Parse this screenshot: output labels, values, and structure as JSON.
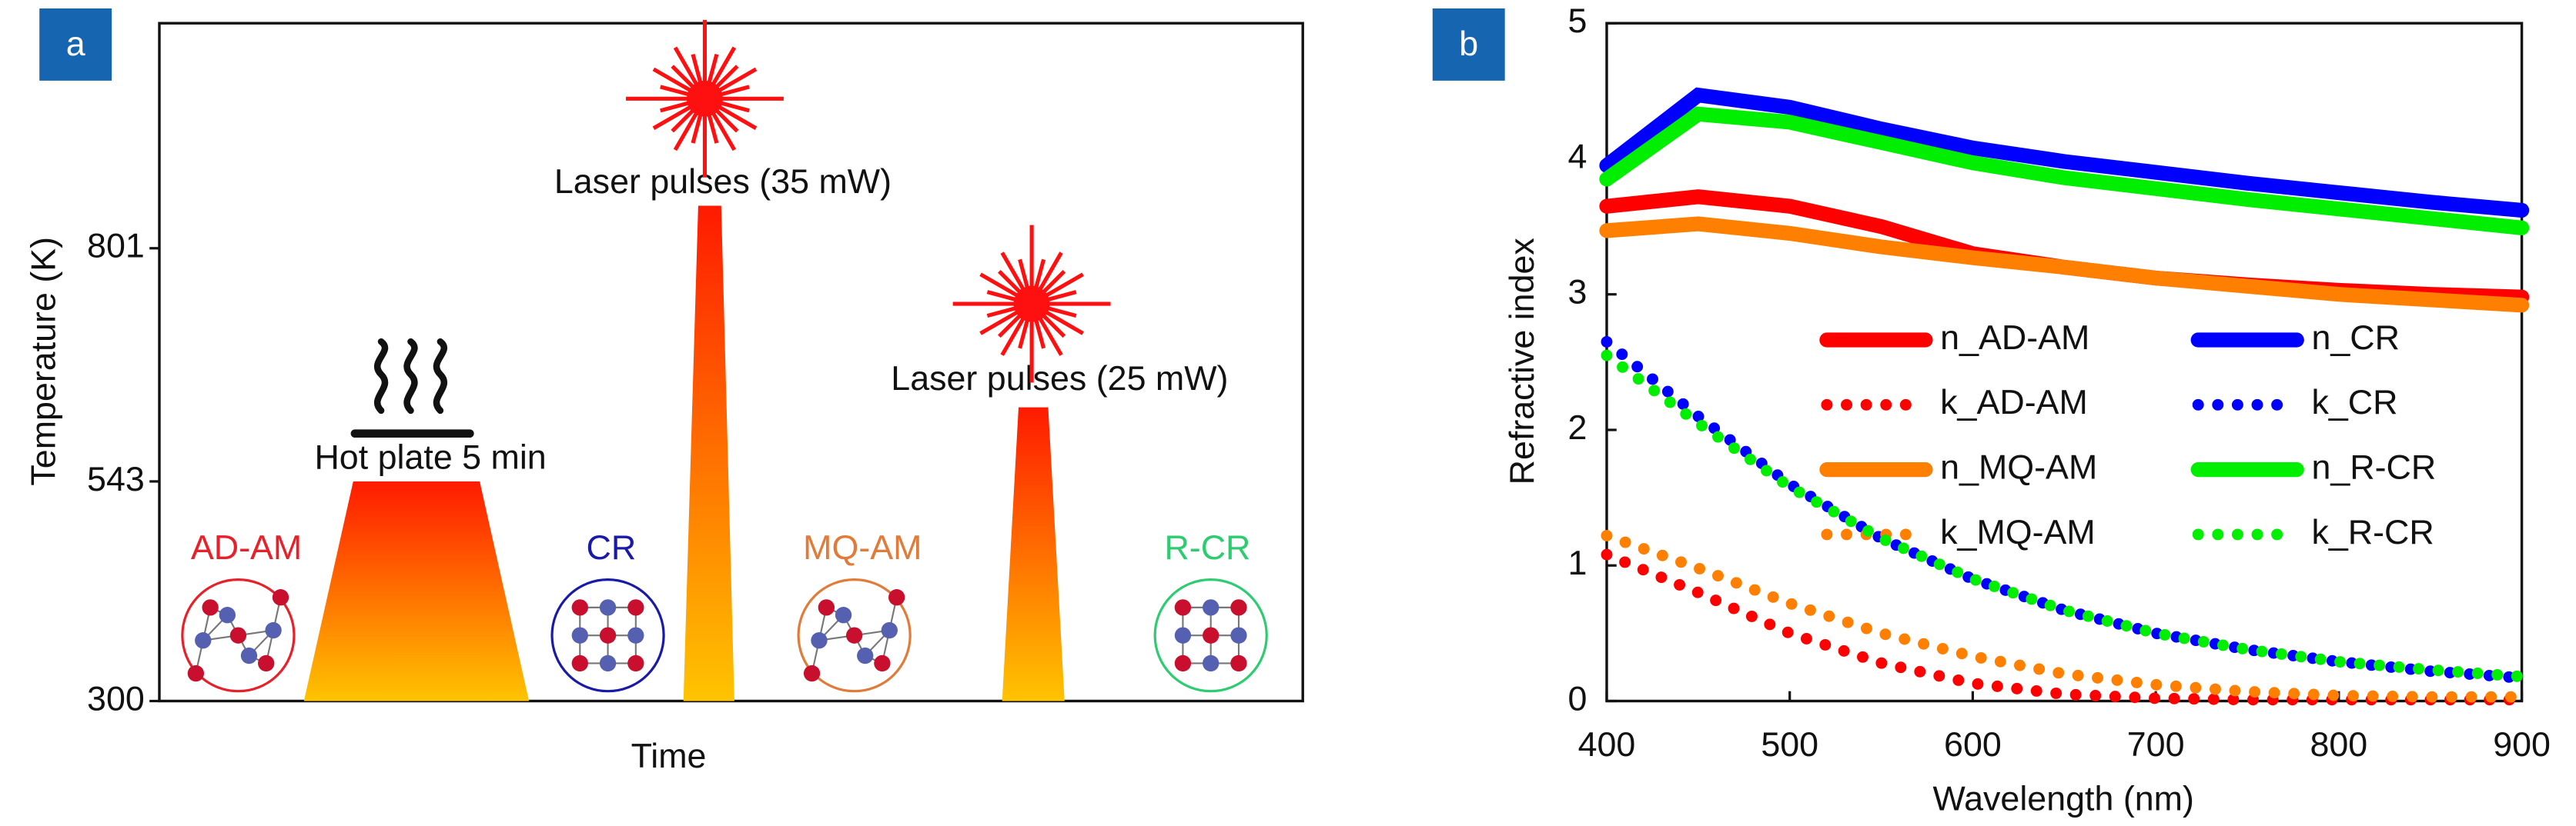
{
  "chart_data": [
    {
      "type": "schematic",
      "panel_label": "a",
      "ylabel": "Temperature (K)",
      "xlabel": "Time",
      "ylim": [
        300,
        1050
      ],
      "yticks": [
        300,
        543,
        801
      ],
      "phases": [
        {
          "label": "Hot plate 5 min",
          "temperature": 543
        },
        {
          "label": "Laser pulses (35 mW)",
          "temperature": 848
        },
        {
          "label": "Laser pulses (25 mW)",
          "temperature": 625
        }
      ],
      "states": [
        {
          "label": "AD-AM",
          "color": "#e8202a"
        },
        {
          "label": "CR",
          "color": "#1a1aa8"
        },
        {
          "label": "MQ-AM",
          "color": "#e07b39"
        },
        {
          "label": "R-CR",
          "color": "#2ecc71"
        }
      ]
    },
    {
      "type": "line",
      "panel_label": "b",
      "xlabel": "Wavelength (nm)",
      "ylabel": "Refractive index",
      "x": [
        400,
        450,
        500,
        550,
        600,
        650,
        700,
        750,
        800,
        850,
        900
      ],
      "xlim": [
        400,
        900
      ],
      "xticks": [
        400,
        500,
        600,
        700,
        800,
        900
      ],
      "ylim": [
        0,
        5
      ],
      "yticks": [
        0,
        1,
        2,
        3,
        4,
        5
      ],
      "series": [
        {
          "name": "n_AD-AM",
          "color": "#ff0000",
          "style": "solid",
          "values": [
            3.65,
            3.72,
            3.65,
            3.5,
            3.3,
            3.2,
            3.12,
            3.07,
            3.03,
            3.0,
            2.98
          ]
        },
        {
          "name": "n_CR",
          "color": "#0000ff",
          "style": "solid",
          "values": [
            3.95,
            4.47,
            4.38,
            4.22,
            4.08,
            3.98,
            3.9,
            3.82,
            3.75,
            3.68,
            3.62
          ]
        },
        {
          "name": "k_AD-AM",
          "color": "#ff0000",
          "style": "dotted",
          "values": [
            1.08,
            0.8,
            0.5,
            0.28,
            0.13,
            0.05,
            0.02,
            0.01,
            0.01,
            0.01,
            0.01
          ]
        },
        {
          "name": "k_CR",
          "color": "#0000ff",
          "style": "dotted",
          "values": [
            2.65,
            2.1,
            1.6,
            1.2,
            0.9,
            0.67,
            0.5,
            0.38,
            0.29,
            0.22,
            0.17
          ]
        },
        {
          "name": "n_MQ-AM",
          "color": "#ff8000",
          "style": "solid",
          "values": [
            3.47,
            3.52,
            3.45,
            3.35,
            3.27,
            3.2,
            3.12,
            3.06,
            3.0,
            2.96,
            2.92
          ]
        },
        {
          "name": "n_R-CR",
          "color": "#00ee00",
          "style": "solid",
          "values": [
            3.85,
            4.33,
            4.27,
            4.12,
            3.97,
            3.86,
            3.78,
            3.7,
            3.63,
            3.56,
            3.49
          ]
        },
        {
          "name": "k_MQ-AM",
          "color": "#ff8000",
          "style": "dotted",
          "values": [
            1.22,
            0.98,
            0.72,
            0.5,
            0.33,
            0.2,
            0.12,
            0.07,
            0.04,
            0.03,
            0.03
          ]
        },
        {
          "name": "k_R-CR",
          "color": "#00ee00",
          "style": "dotted",
          "values": [
            2.55,
            2.05,
            1.58,
            1.2,
            0.9,
            0.67,
            0.5,
            0.38,
            0.29,
            0.23,
            0.18
          ]
        }
      ]
    }
  ]
}
